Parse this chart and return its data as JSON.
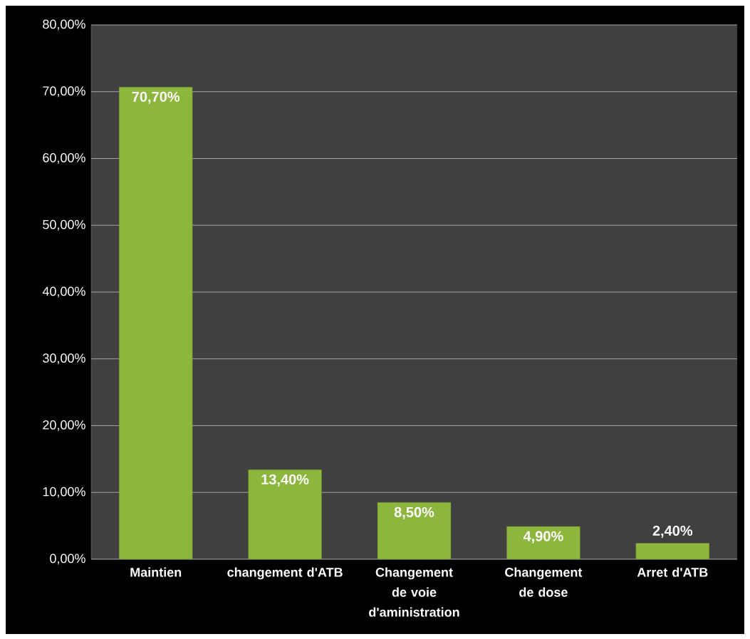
{
  "chart_data": {
    "type": "bar",
    "categories": [
      "Maintien",
      "changement d'ATB",
      "Changement de voie d'aministration",
      "Changement de dose",
      "Arret d'ATB"
    ],
    "values": [
      70.7,
      13.4,
      8.5,
      4.9,
      2.4
    ],
    "value_labels": [
      "70,70%",
      "13,40%",
      "8,50%",
      "4,90%",
      "2,40%"
    ],
    "color": "#8db63c",
    "ylim": [
      0,
      80
    ],
    "yticks": [
      {
        "value": 0,
        "label": "0,00%"
      },
      {
        "value": 10,
        "label": "10,00%"
      },
      {
        "value": 20,
        "label": "20,00%"
      },
      {
        "value": 30,
        "label": "30,00%"
      },
      {
        "value": 40,
        "label": "40,00%"
      },
      {
        "value": 50,
        "label": "50,00%"
      },
      {
        "value": 60,
        "label": "60,00%"
      },
      {
        "value": 70,
        "label": "70,00%"
      },
      {
        "value": 80,
        "label": "80,00%"
      }
    ],
    "grid": "y"
  }
}
